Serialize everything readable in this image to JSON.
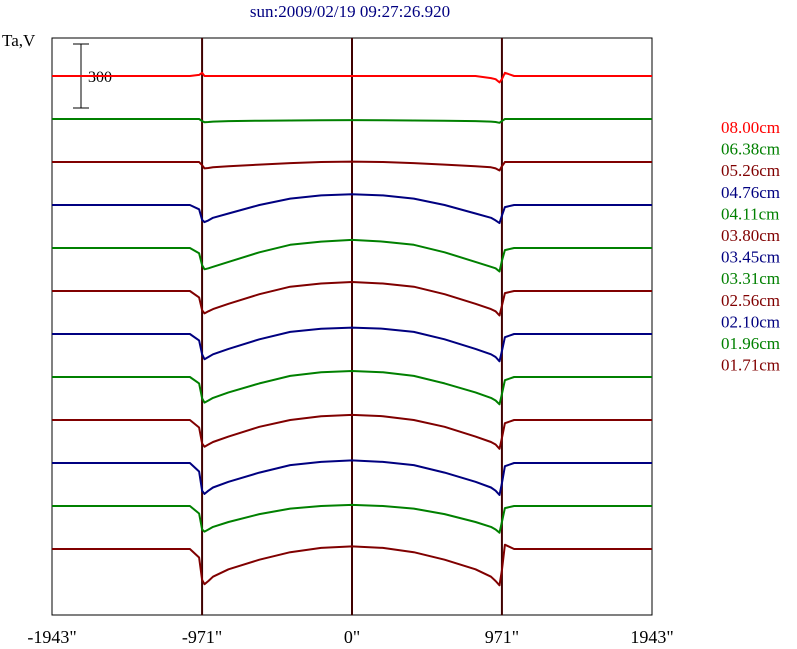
{
  "chart_data": {
    "type": "line",
    "title": "sun:2009/02/19 09:27:26.920",
    "ylabel": "Ta,V",
    "scale_bar_label": "300",
    "scale_bar_value": 300,
    "x_ticks": [
      {
        "value": -1943,
        "label": "-1943\""
      },
      {
        "value": -971,
        "label": "-971\""
      },
      {
        "value": 0,
        "label": "0\""
      },
      {
        "value": 971,
        "label": "971\""
      },
      {
        "value": 1943,
        "label": "1943\""
      }
    ],
    "xlim": [
      -1943,
      1943
    ],
    "vertical_markers": [
      -971,
      0,
      971
    ],
    "grid": false,
    "legend_position": "right",
    "colors": {
      "red": "#ff0000",
      "green": "#008000",
      "maroon": "#800000",
      "navy": "#000080",
      "axis": "#000000",
      "marker": "#400000",
      "title": "#000080"
    },
    "x": [
      -1943,
      -1800,
      -1600,
      -1400,
      -1200,
      -1050,
      -990,
      -971,
      -955,
      -930,
      -900,
      -800,
      -600,
      -400,
      -200,
      0,
      200,
      400,
      600,
      800,
      900,
      930,
      955,
      971,
      990,
      1050,
      1200,
      1400,
      1600,
      1800,
      1943
    ],
    "series": [
      {
        "name": "08.00cm",
        "color": "#ff0000",
        "values": [
          0,
          0,
          0,
          0,
          0,
          0,
          5,
          15,
          0,
          0,
          0,
          0,
          0,
          0,
          0,
          0,
          0,
          0,
          0,
          0,
          -10,
          -15,
          -30,
          -15,
          15,
          0,
          0,
          0,
          0,
          0,
          0
        ]
      },
      {
        "name": "06.38cm",
        "color": "#008000",
        "values": [
          0,
          0,
          0,
          0,
          0,
          0,
          0,
          -10,
          -15,
          -14,
          -12,
          -10,
          -8,
          -7,
          -6,
          -5,
          -6,
          -7,
          -8,
          -10,
          -12,
          -14,
          -18,
          -10,
          0,
          0,
          0,
          0,
          0,
          0,
          0
        ]
      },
      {
        "name": "05.26cm",
        "color": "#800000",
        "values": [
          0,
          0,
          0,
          0,
          0,
          0,
          0,
          -15,
          -30,
          -28,
          -25,
          -20,
          -12,
          -5,
          0,
          2,
          0,
          -5,
          -12,
          -20,
          -25,
          -30,
          -40,
          -20,
          0,
          0,
          0,
          0,
          0,
          0,
          0
        ]
      },
      {
        "name": "04.76cm",
        "color": "#000080",
        "values": [
          0,
          0,
          0,
          0,
          0,
          0,
          -20,
          -70,
          -80,
          -72,
          -60,
          -40,
          0,
          30,
          45,
          50,
          45,
          30,
          0,
          -40,
          -60,
          -72,
          -85,
          -50,
          -10,
          0,
          0,
          0,
          0,
          0,
          0
        ]
      },
      {
        "name": "04.11cm",
        "color": "#008000",
        "values": [
          0,
          0,
          0,
          0,
          0,
          0,
          -25,
          -80,
          -100,
          -95,
          -88,
          -65,
          -20,
          15,
          30,
          38,
          30,
          15,
          -20,
          -65,
          -88,
          -95,
          -110,
          -60,
          -10,
          0,
          0,
          0,
          0,
          0,
          0
        ]
      },
      {
        "name": "03.80cm",
        "color": "#800000",
        "values": [
          0,
          0,
          0,
          0,
          0,
          0,
          -30,
          -90,
          -105,
          -95,
          -85,
          -60,
          -15,
          20,
          35,
          42,
          35,
          20,
          -15,
          -60,
          -85,
          -95,
          -115,
          -70,
          -10,
          0,
          0,
          0,
          0,
          0,
          0
        ]
      },
      {
        "name": "03.45cm",
        "color": "#000080",
        "values": [
          0,
          0,
          0,
          0,
          0,
          0,
          -30,
          -95,
          -118,
          -108,
          -95,
          -70,
          -25,
          10,
          25,
          30,
          25,
          10,
          -25,
          -70,
          -95,
          -108,
          -128,
          -80,
          -15,
          0,
          0,
          0,
          0,
          0,
          0
        ]
      },
      {
        "name": "03.31cm",
        "color": "#008000",
        "values": [
          0,
          0,
          0,
          0,
          0,
          0,
          -30,
          -100,
          -120,
          -110,
          -98,
          -72,
          -30,
          5,
          22,
          28,
          22,
          5,
          -30,
          -72,
          -98,
          -110,
          -128,
          -80,
          -15,
          0,
          0,
          0,
          0,
          0,
          0
        ]
      },
      {
        "name": "02.56cm",
        "color": "#800000",
        "values": [
          0,
          0,
          0,
          0,
          0,
          0,
          -35,
          -110,
          -125,
          -115,
          -103,
          -78,
          -32,
          0,
          18,
          24,
          18,
          0,
          -32,
          -78,
          -103,
          -115,
          -135,
          -85,
          -15,
          0,
          0,
          0,
          0,
          0,
          0
        ]
      },
      {
        "name": "02.10cm",
        "color": "#000080",
        "values": [
          0,
          0,
          0,
          0,
          0,
          0,
          -40,
          -130,
          -145,
          -130,
          -115,
          -88,
          -45,
          -10,
          5,
          12,
          5,
          -10,
          -45,
          -88,
          -115,
          -130,
          -150,
          -95,
          -15,
          0,
          0,
          0,
          0,
          0,
          0
        ]
      },
      {
        "name": "01.96cm",
        "color": "#008000",
        "values": [
          0,
          0,
          0,
          0,
          0,
          0,
          -35,
          -110,
          -120,
          -110,
          -98,
          -75,
          -38,
          -12,
          0,
          5,
          0,
          -12,
          -38,
          -75,
          -98,
          -110,
          -125,
          -75,
          -10,
          0,
          0,
          0,
          0,
          0,
          0
        ]
      },
      {
        "name": "01.71cm",
        "color": "#800000",
        "values": [
          0,
          0,
          0,
          0,
          0,
          0,
          -40,
          -145,
          -165,
          -150,
          -130,
          -95,
          -50,
          -15,
          5,
          12,
          5,
          -15,
          -50,
          -95,
          -130,
          -150,
          -170,
          -100,
          20,
          0,
          0,
          0,
          0,
          0,
          0
        ]
      }
    ]
  }
}
